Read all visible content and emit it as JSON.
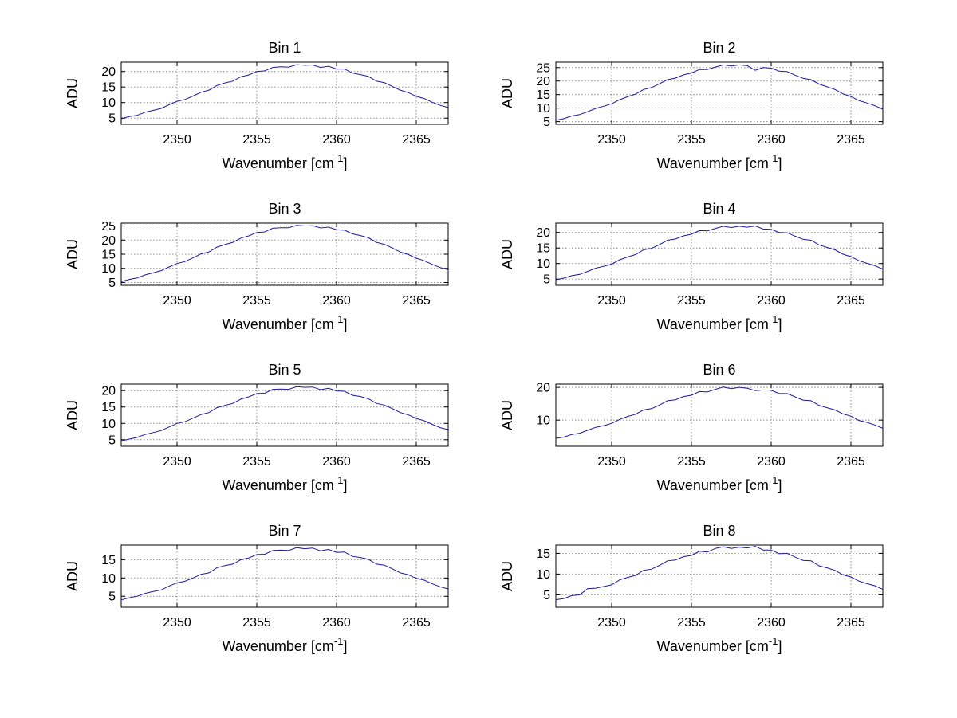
{
  "figure": {
    "background": "#ffffff",
    "axis_color": "#000000",
    "grid_color": "#8c8c8c",
    "tick_label_color": "#000000"
  },
  "chart_data": {
    "type": "line",
    "layout": "4x2-subplots",
    "xlabel": "Wavenumber [cm^-1]",
    "xlabel_parts": {
      "main": "Wavenumber [cm",
      "sup": "-1",
      "close": "]"
    },
    "ylabel": "ADU",
    "xlim": [
      2346.5,
      2367
    ],
    "xticks": [
      2350,
      2355,
      2360,
      2365
    ],
    "grid": "dotted",
    "legend": "none",
    "line_color": "#1a1a9e",
    "x": [
      2346.5,
      2347,
      2347.5,
      2348,
      2348.5,
      2349,
      2349.5,
      2350,
      2350.5,
      2351,
      2351.5,
      2352,
      2352.5,
      2353,
      2353.5,
      2354,
      2354.5,
      2355,
      2355.5,
      2356,
      2356.5,
      2357,
      2357.5,
      2358,
      2358.5,
      2359,
      2359.5,
      2360,
      2360.5,
      2361,
      2361.5,
      2362,
      2362.5,
      2363,
      2363.5,
      2364,
      2364.5,
      2365,
      2365.5,
      2366,
      2366.5,
      2367
    ],
    "subplots": [
      {
        "title": "Bin 1",
        "yticks": [
          5,
          10,
          15,
          20
        ],
        "ylim": [
          3,
          23
        ],
        "values": [
          4.8,
          5.5,
          5.9,
          6.9,
          7.5,
          8.1,
          9.3,
          10.4,
          11.0,
          12.1,
          13.3,
          14.0,
          15.5,
          16.3,
          16.9,
          18.3,
          18.9,
          20.0,
          20.2,
          21.3,
          21.5,
          21.4,
          22.2,
          22.0,
          22.1,
          21.3,
          21.7,
          20.8,
          20.8,
          19.5,
          19.0,
          18.4,
          16.9,
          16.4,
          15.2,
          14.0,
          13.2,
          12.0,
          11.3,
          10.1,
          9.1,
          8.4
        ]
      },
      {
        "title": "Bin 2",
        "yticks": [
          5,
          10,
          15,
          20,
          25
        ],
        "ylim": [
          4,
          27
        ],
        "values": [
          5.5,
          6.1,
          7.1,
          7.6,
          8.7,
          9.9,
          10.7,
          11.6,
          13.1,
          14.2,
          15.2,
          16.9,
          17.6,
          19.0,
          20.5,
          21.1,
          22.3,
          23.0,
          24.3,
          24.3,
          25.2,
          26.0,
          25.6,
          26.0,
          25.7,
          24.0,
          25.0,
          24.8,
          23.7,
          23.5,
          22.2,
          21.0,
          20.5,
          18.9,
          17.9,
          16.9,
          15.3,
          14.3,
          12.8,
          11.9,
          10.9,
          9.6
        ]
      },
      {
        "title": "Bin 3",
        "yticks": [
          5,
          10,
          15,
          20,
          25
        ],
        "ylim": [
          4,
          26
        ],
        "values": [
          5.3,
          6.1,
          6.6,
          7.7,
          8.4,
          9.2,
          10.5,
          11.7,
          12.4,
          13.7,
          15.1,
          15.8,
          17.5,
          18.4,
          19.2,
          20.7,
          21.5,
          22.7,
          22.9,
          24.2,
          24.4,
          24.4,
          25.2,
          25.0,
          25.1,
          24.3,
          24.6,
          23.7,
          23.5,
          22.2,
          21.6,
          20.8,
          19.2,
          18.5,
          17.2,
          15.8,
          14.9,
          13.6,
          12.7,
          11.4,
          10.3,
          9.5
        ]
      },
      {
        "title": "Bin 4",
        "yticks": [
          5,
          10,
          15,
          20
        ],
        "ylim": [
          3,
          23
        ],
        "values": [
          4.8,
          5.3,
          6.1,
          6.5,
          7.5,
          8.5,
          9.1,
          9.8,
          11.2,
          12.1,
          12.9,
          14.4,
          14.9,
          16.1,
          17.5,
          17.9,
          18.9,
          19.4,
          20.6,
          20.5,
          21.3,
          22.0,
          21.6,
          22.0,
          21.7,
          22.1,
          21.1,
          21.0,
          20.0,
          19.9,
          18.8,
          17.8,
          17.5,
          16.0,
          15.2,
          14.4,
          13.0,
          12.2,
          10.9,
          10.1,
          9.3,
          8.2
        ]
      },
      {
        "title": "Bin 5",
        "yticks": [
          5,
          10,
          15,
          20
        ],
        "ylim": [
          3,
          22
        ],
        "values": [
          4.6,
          5.2,
          5.7,
          6.6,
          7.2,
          7.8,
          8.9,
          10.0,
          10.5,
          11.6,
          12.7,
          13.3,
          14.8,
          15.5,
          16.1,
          17.4,
          18.1,
          19.1,
          19.2,
          20.4,
          20.5,
          20.4,
          21.2,
          21.0,
          21.1,
          20.3,
          20.7,
          19.9,
          19.8,
          18.6,
          18.2,
          17.5,
          16.1,
          15.6,
          14.5,
          13.3,
          12.6,
          11.5,
          10.8,
          9.7,
          8.7,
          8.1
        ]
      },
      {
        "title": "Bin 6",
        "yticks": [
          10,
          20
        ],
        "ylim": [
          2,
          21
        ],
        "values": [
          4.4,
          4.8,
          5.6,
          6.0,
          6.9,
          7.8,
          8.3,
          9.0,
          10.2,
          11.1,
          11.8,
          13.1,
          13.5,
          14.6,
          15.9,
          16.2,
          17.2,
          17.6,
          18.7,
          18.6,
          19.4,
          20.1,
          19.6,
          20.0,
          19.7,
          19.0,
          19.2,
          19.1,
          18.1,
          18.1,
          17.1,
          16.1,
          15.9,
          14.5,
          13.8,
          13.1,
          11.9,
          11.2,
          9.9,
          9.3,
          8.5,
          7.5
        ]
      },
      {
        "title": "Bin 7",
        "yticks": [
          5,
          10,
          15
        ],
        "ylim": [
          2,
          19
        ],
        "values": [
          4.0,
          4.6,
          5.0,
          5.8,
          6.3,
          6.7,
          7.8,
          8.7,
          9.1,
          10.0,
          11.0,
          11.4,
          12.8,
          13.4,
          13.8,
          15.0,
          15.5,
          16.4,
          16.5,
          17.5,
          17.6,
          17.5,
          18.3,
          18.0,
          18.2,
          17.4,
          17.8,
          17.0,
          17.1,
          15.9,
          15.6,
          15.1,
          13.8,
          13.5,
          12.5,
          11.4,
          10.9,
          9.9,
          9.4,
          8.4,
          7.6,
          7.0
        ]
      },
      {
        "title": "Bin 8",
        "yticks": [
          5,
          10,
          15
        ],
        "ylim": [
          2,
          17
        ],
        "values": [
          3.8,
          4.1,
          4.8,
          5.0,
          6.5,
          6.6,
          7.0,
          7.4,
          8.6,
          9.2,
          9.7,
          10.9,
          11.2,
          12.1,
          13.2,
          13.4,
          14.2,
          14.5,
          15.5,
          15.3,
          16.2,
          16.6,
          16.2,
          16.5,
          16.3,
          16.7,
          15.8,
          15.8,
          14.9,
          15.0,
          14.1,
          13.3,
          13.2,
          12.0,
          11.5,
          10.9,
          9.8,
          9.3,
          8.3,
          7.7,
          7.2,
          6.3
        ]
      }
    ]
  }
}
